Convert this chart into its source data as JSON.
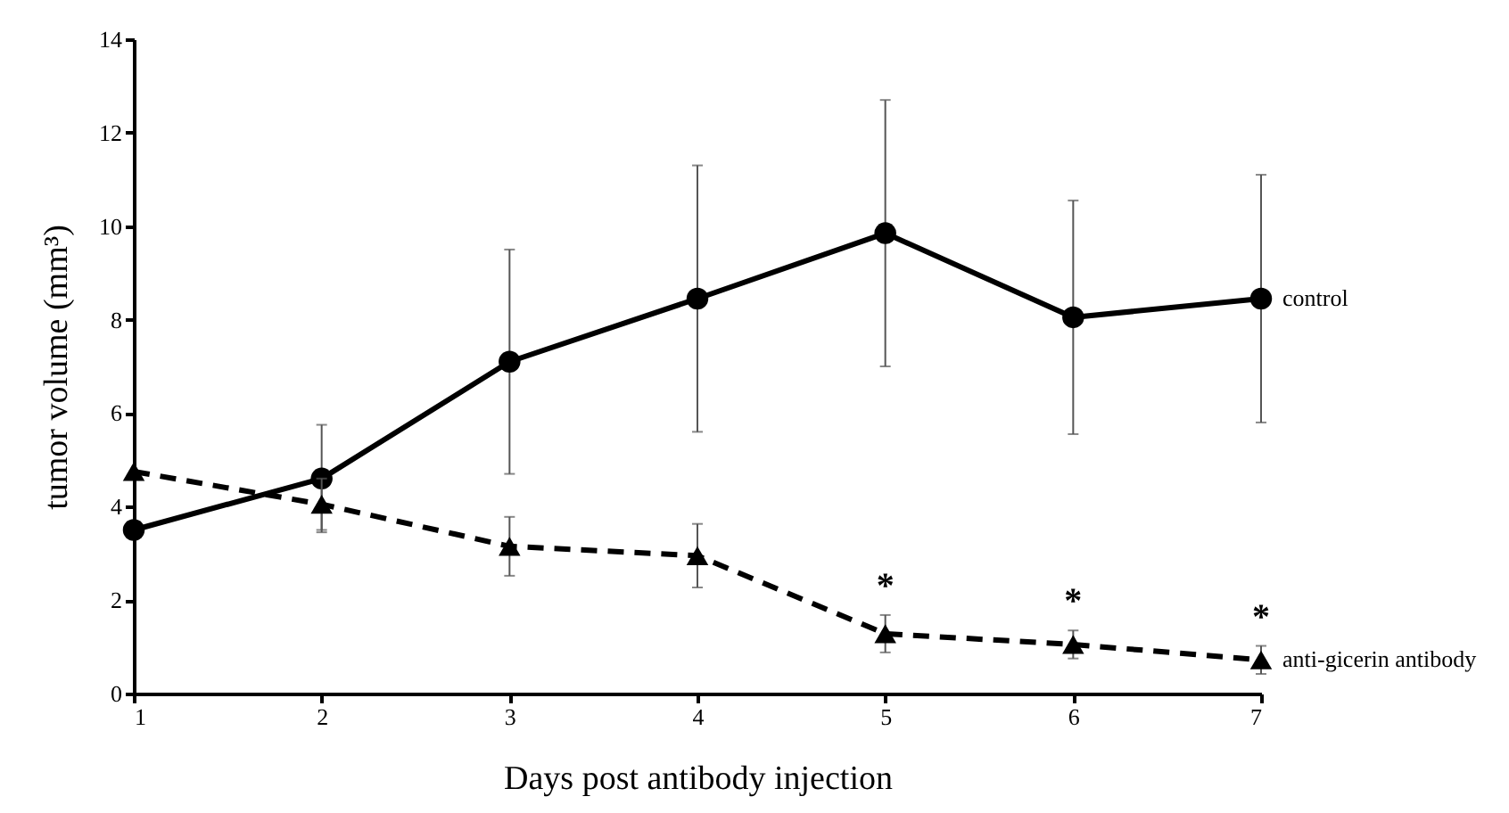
{
  "chart_data": {
    "type": "line",
    "xlabel": "Days post antibody injection",
    "ylabel": "tumor volume (mm³)",
    "x": [
      1,
      2,
      3,
      4,
      5,
      6,
      7
    ],
    "series": [
      {
        "name": "control",
        "color": "#000000",
        "marker": "circle",
        "line_style": "solid",
        "values": [
          3.5,
          4.6,
          7.1,
          8.45,
          9.85,
          8.05,
          8.45
        ],
        "errors": [
          null,
          1.15,
          2.4,
          2.85,
          2.85,
          2.5,
          2.65
        ]
      },
      {
        "name": "anti-gicerin antibody",
        "color": "#000000",
        "marker": "triangle",
        "line_style": "dashed",
        "values": [
          4.75,
          4.05,
          3.15,
          2.95,
          1.28,
          1.05,
          0.72
        ],
        "errors": [
          null,
          0.55,
          0.63,
          0.68,
          0.4,
          0.3,
          0.3
        ]
      }
    ],
    "annotations": [
      {
        "text": "*",
        "x": 5,
        "y": 1.28
      },
      {
        "text": "*",
        "x": 6,
        "y": 1.05
      },
      {
        "text": "*",
        "x": 7,
        "y": 0.72
      }
    ],
    "xlim": [
      1,
      7
    ],
    "xticks": [
      1,
      2,
      3,
      4,
      5,
      6,
      7
    ],
    "ylim": [
      0,
      14
    ],
    "yticks": [
      0,
      2,
      4,
      6,
      8,
      10,
      12,
      14
    ],
    "grid": false,
    "legend": false
  }
}
